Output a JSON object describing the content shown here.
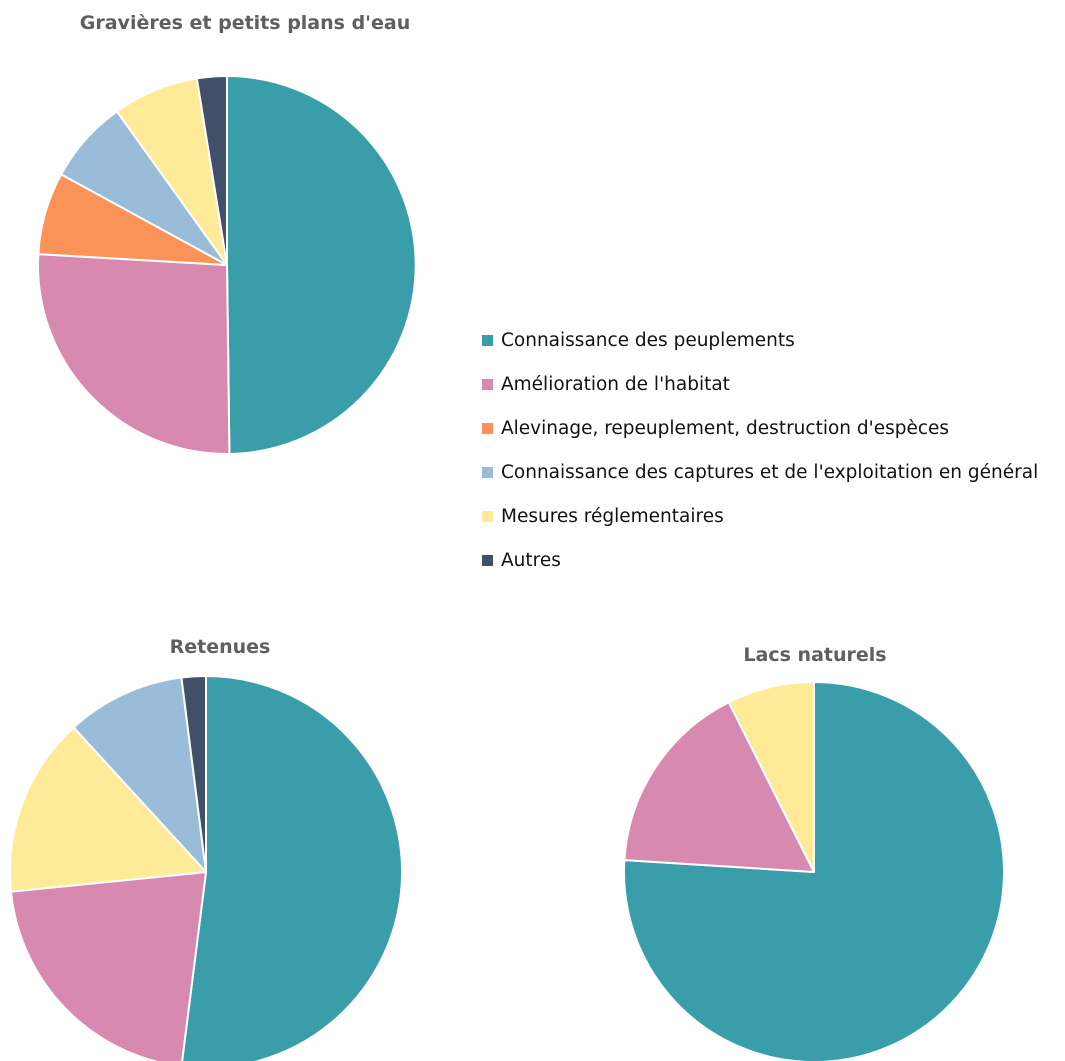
{
  "chart_data": [
    {
      "type": "pie",
      "title": "Gravières et petits plans d'eau",
      "categories": [
        "Connaissance des peuplements",
        "Amélioration de l'habitat",
        "Alevinage, repeuplement, destruction d'espèces",
        "Connaissance des captures et de l'exploitation en général",
        "Mesures réglementaires",
        "Autres"
      ],
      "values": [
        48.8,
        25.6,
        6.9,
        7.0,
        7.2,
        2.5
      ]
    },
    {
      "type": "pie",
      "title": "Retenues",
      "categories": [
        "Connaissance des peuplements",
        "Amélioration de l'habitat",
        "Mesures réglementaires",
        "Connaissance des captures et de l'exploitation en général",
        "Autres"
      ],
      "values": [
        52.0,
        21.4,
        14.8,
        9.8,
        2.0
      ]
    },
    {
      "type": "pie",
      "title": "Lacs naturels",
      "categories": [
        "Connaissance des peuplements",
        "Amélioration de l'habitat",
        "Mesures réglementaires"
      ],
      "values": [
        76.0,
        16.6,
        7.4
      ]
    }
  ],
  "legend": {
    "placement": "right",
    "items": [
      {
        "label": "Connaissance des peuplements",
        "color": "#3a9eaa"
      },
      {
        "label": "Amélioration de l'habitat",
        "color": "#d889b0"
      },
      {
        "label": "Alevinage, repeuplement, destruction d'espèces",
        "color": "#fb9258"
      },
      {
        "label": "Connaissance des captures et de l'exploitation en général",
        "color": "#99bcd8"
      },
      {
        "label": "Mesures réglementaires",
        "color": "#ffea98"
      },
      {
        "label": "Autres",
        "color": "#3f5068"
      }
    ]
  }
}
